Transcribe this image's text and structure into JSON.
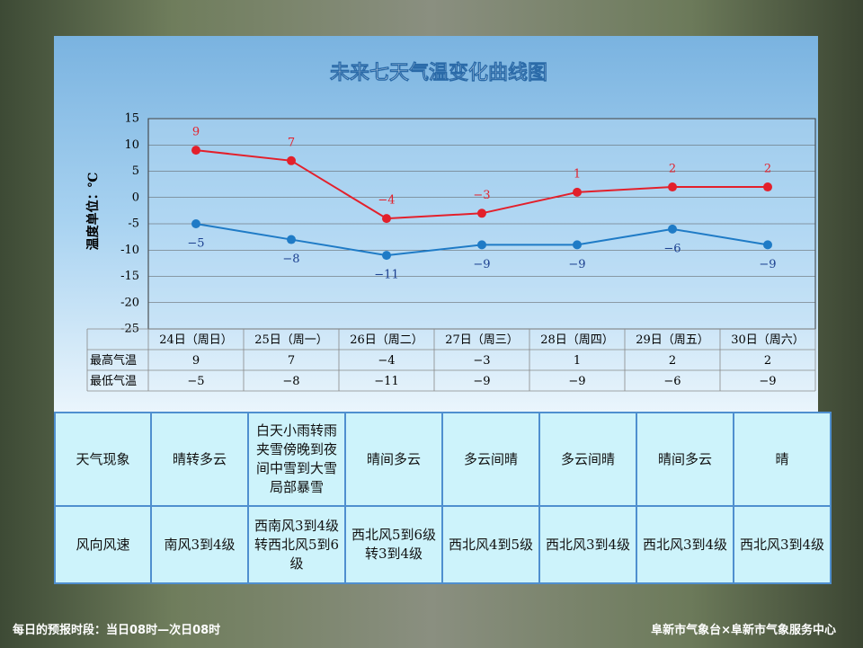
{
  "chart_data": {
    "type": "line",
    "title": "未来七天气温变化曲线图",
    "y_label": "温度单位：℃",
    "categories": [
      "24日（周日）",
      "25日（周一）",
      "26日（周二）",
      "27日（周三）",
      "28日（周四）",
      "29日（周五）",
      "30日（周六）"
    ],
    "series": [
      {
        "name": "最高气温",
        "color": "#e3202b",
        "values": [
          9,
          7,
          -4,
          -3,
          1,
          2,
          2
        ],
        "value_labels": [
          "9",
          "7",
          "−4",
          "−3",
          "1",
          "2",
          "2"
        ]
      },
      {
        "name": "最低气温",
        "color": "#1f7bc6",
        "values": [
          -5,
          -8,
          -11,
          -9,
          -9,
          -6,
          -9
        ],
        "value_labels": [
          "−5",
          "−8",
          "−11",
          "−9",
          "−9",
          "−6",
          "−9"
        ]
      }
    ],
    "ylim": [
      -25,
      15
    ],
    "yticks": [
      15,
      10,
      5,
      0,
      -5,
      -10,
      -15,
      -20,
      -25
    ],
    "grid": true
  },
  "forecast_table": {
    "rows": [
      {
        "label": "天气现象",
        "cells": [
          "晴转多云",
          "白天小雨转雨夹雪傍晚到夜间中雪到大雪局部暴雪",
          "晴间多云",
          "多云间晴",
          "多云间晴",
          "晴间多云",
          "晴"
        ]
      },
      {
        "label": "风向风速",
        "cells": [
          "南风3到4级",
          "西南风3到4级转西北风5到6级",
          "西北风5到6级转3到4级",
          "西北风4到5级",
          "西北风3到4级",
          "西北风3到4级",
          "西北风3到4级"
        ]
      }
    ]
  },
  "footer": {
    "left": "每日的预报时段：当日08时—次日08时",
    "right": "阜新市气象台×阜新市气象服务中心"
  }
}
